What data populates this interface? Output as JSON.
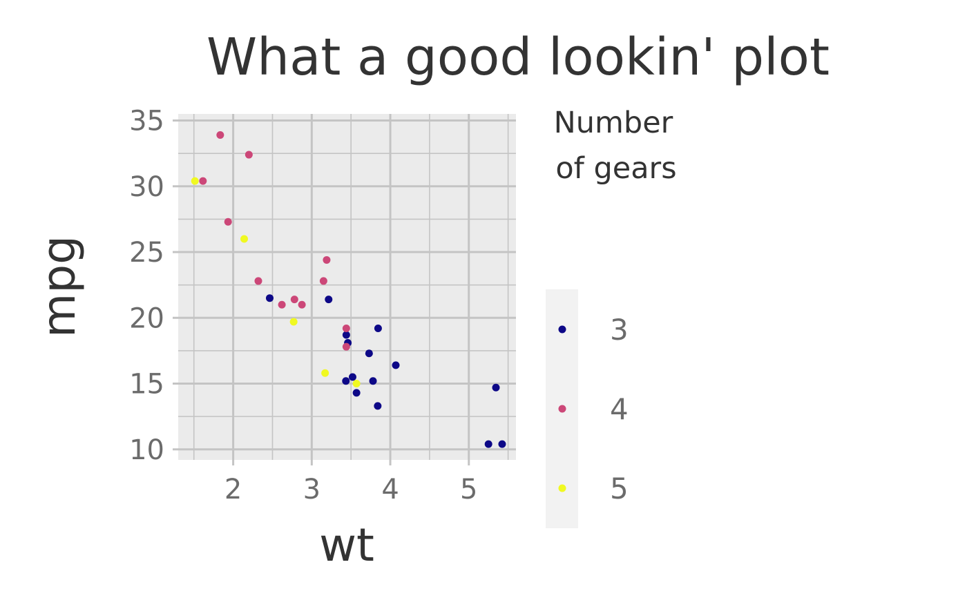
{
  "chart_data": {
    "type": "scatter",
    "title": "What a good lookin' plot",
    "xlabel": "wt",
    "ylabel": "mpg",
    "xlim": [
      1.3,
      5.6
    ],
    "ylim": [
      9.2,
      35.5
    ],
    "x_ticks": [
      2,
      3,
      4,
      5
    ],
    "y_ticks": [
      10,
      15,
      20,
      25,
      30,
      35
    ],
    "grid": true,
    "legend": {
      "title_lines": [
        "Number",
        "of gears"
      ],
      "placement": "right"
    },
    "series": [
      {
        "name": "3",
        "color": "#0d0887",
        "points": [
          {
            "x": 2.465,
            "y": 21.5
          },
          {
            "x": 3.215,
            "y": 21.4
          },
          {
            "x": 3.44,
            "y": 18.7
          },
          {
            "x": 3.46,
            "y": 18.1
          },
          {
            "x": 3.57,
            "y": 14.3
          },
          {
            "x": 4.07,
            "y": 16.4
          },
          {
            "x": 3.73,
            "y": 17.3
          },
          {
            "x": 3.78,
            "y": 15.2
          },
          {
            "x": 5.25,
            "y": 10.4
          },
          {
            "x": 5.424,
            "y": 10.4
          },
          {
            "x": 5.345,
            "y": 14.7
          },
          {
            "x": 3.52,
            "y": 15.5
          },
          {
            "x": 3.435,
            "y": 15.2
          },
          {
            "x": 3.84,
            "y": 13.3
          },
          {
            "x": 3.845,
            "y": 19.2
          }
        ]
      },
      {
        "name": "4",
        "color": "#cc4778",
        "points": [
          {
            "x": 2.62,
            "y": 21.0
          },
          {
            "x": 2.875,
            "y": 21.0
          },
          {
            "x": 2.32,
            "y": 22.8
          },
          {
            "x": 3.19,
            "y": 24.4
          },
          {
            "x": 3.15,
            "y": 22.8
          },
          {
            "x": 3.44,
            "y": 19.2
          },
          {
            "x": 3.44,
            "y": 17.8
          },
          {
            "x": 2.2,
            "y": 32.4
          },
          {
            "x": 1.615,
            "y": 30.4
          },
          {
            "x": 1.835,
            "y": 33.9
          },
          {
            "x": 1.935,
            "y": 27.3
          },
          {
            "x": 2.78,
            "y": 21.4
          }
        ]
      },
      {
        "name": "5",
        "color": "#f0f921",
        "points": [
          {
            "x": 2.14,
            "y": 26.0
          },
          {
            "x": 1.513,
            "y": 30.4
          },
          {
            "x": 3.17,
            "y": 15.8
          },
          {
            "x": 2.77,
            "y": 19.7
          },
          {
            "x": 3.57,
            "y": 15.0
          }
        ]
      }
    ]
  }
}
